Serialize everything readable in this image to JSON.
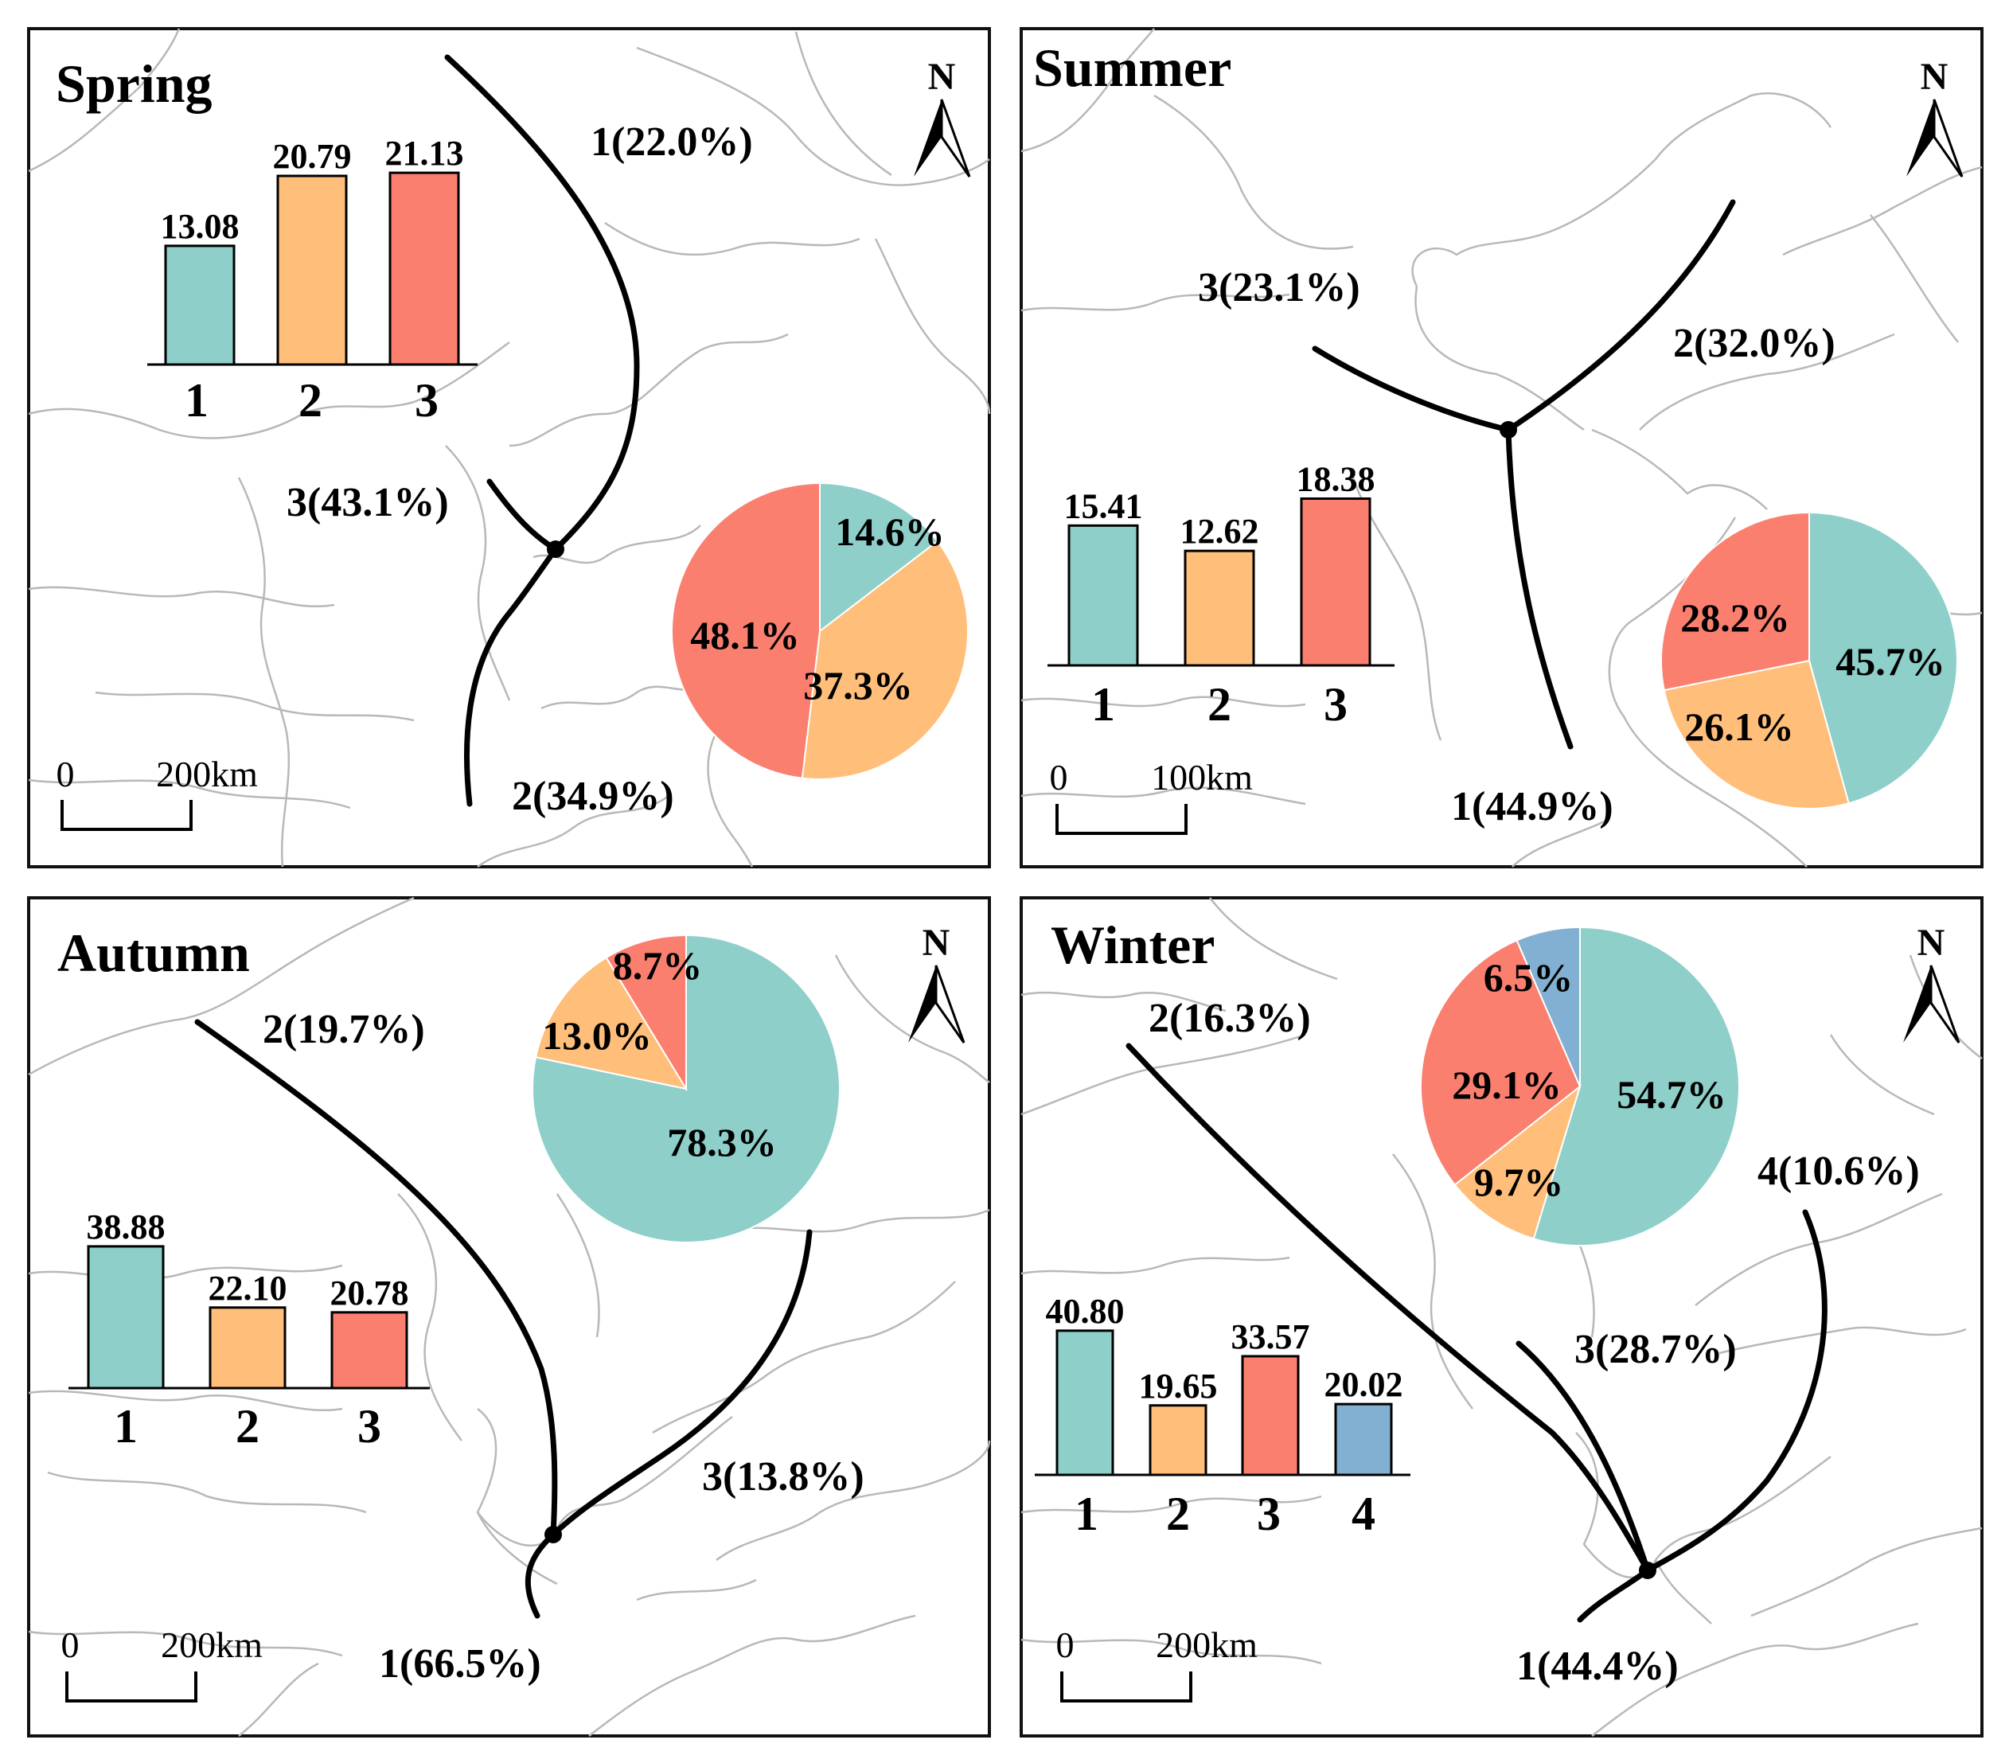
{
  "colors": {
    "c1": "#8ecfc9",
    "c2": "#ffbe7a",
    "c3": "#fa7f6f",
    "c4": "#82b0d2",
    "border": "#111111",
    "map_line": "#b8b8b8",
    "trajectory": "#000000"
  },
  "north_symbol": "N",
  "panels": [
    {
      "season": "Spring",
      "scale_zero": "0",
      "scale_label": "200km",
      "bars": {
        "categories": [
          "1",
          "2",
          "3"
        ],
        "values": [
          13.08,
          20.79,
          21.13
        ],
        "labels": [
          "13.08",
          "20.79",
          "21.13"
        ]
      },
      "pie": {
        "slices": [
          {
            "cluster": "1",
            "percent": 14.6,
            "label": "14.6%"
          },
          {
            "cluster": "2",
            "percent": 37.3,
            "label": "37.3%"
          },
          {
            "cluster": "3",
            "percent": 48.1,
            "label": "48.1%"
          }
        ]
      },
      "trajectories": [
        {
          "label": "1(22.0%)"
        },
        {
          "label": "2(34.9%)"
        },
        {
          "label": "3(43.1%)"
        }
      ]
    },
    {
      "season": "Summer",
      "scale_zero": "0",
      "scale_label": "100km",
      "bars": {
        "categories": [
          "1",
          "2",
          "3"
        ],
        "values": [
          15.41,
          12.62,
          18.38
        ],
        "labels": [
          "15.41",
          "12.62",
          "18.38"
        ]
      },
      "pie": {
        "slices": [
          {
            "cluster": "1",
            "percent": 45.7,
            "label": "45.7%"
          },
          {
            "cluster": "2",
            "percent": 26.1,
            "label": "26.1%"
          },
          {
            "cluster": "3",
            "percent": 28.2,
            "label": "28.2%"
          }
        ]
      },
      "trajectories": [
        {
          "label": "1(44.9%)"
        },
        {
          "label": "2(32.0%)"
        },
        {
          "label": "3(23.1%)"
        }
      ]
    },
    {
      "season": "Autumn",
      "scale_zero": "0",
      "scale_label": "200km",
      "bars": {
        "categories": [
          "1",
          "2",
          "3"
        ],
        "values": [
          38.88,
          22.1,
          20.78
        ],
        "labels": [
          "38.88",
          "22.10",
          "20.78"
        ]
      },
      "pie": {
        "slices": [
          {
            "cluster": "1",
            "percent": 78.3,
            "label": "78.3%"
          },
          {
            "cluster": "2",
            "percent": 13.0,
            "label": "13.0%"
          },
          {
            "cluster": "3",
            "percent": 8.7,
            "label": "8.7%"
          }
        ]
      },
      "trajectories": [
        {
          "label": "1(66.5%)"
        },
        {
          "label": "2(19.7%)"
        },
        {
          "label": "3(13.8%)"
        }
      ]
    },
    {
      "season": "Winter",
      "scale_zero": "0",
      "scale_label": "200km",
      "bars": {
        "categories": [
          "1",
          "2",
          "3",
          "4"
        ],
        "values": [
          40.8,
          19.65,
          33.57,
          20.02
        ],
        "labels": [
          "40.80",
          "19.65",
          "33.57",
          "20.02"
        ]
      },
      "pie": {
        "slices": [
          {
            "cluster": "1",
            "percent": 54.7,
            "label": "54.7%"
          },
          {
            "cluster": "2",
            "percent": 9.7,
            "label": "9.7%"
          },
          {
            "cluster": "3",
            "percent": 29.1,
            "label": "29.1%"
          },
          {
            "cluster": "4",
            "percent": 6.5,
            "label": "6.5%"
          }
        ]
      },
      "trajectories": [
        {
          "label": "1(44.4%)"
        },
        {
          "label": "2(16.3%)"
        },
        {
          "label": "3(28.7%)"
        },
        {
          "label": "4(10.6%)"
        }
      ]
    }
  ]
}
